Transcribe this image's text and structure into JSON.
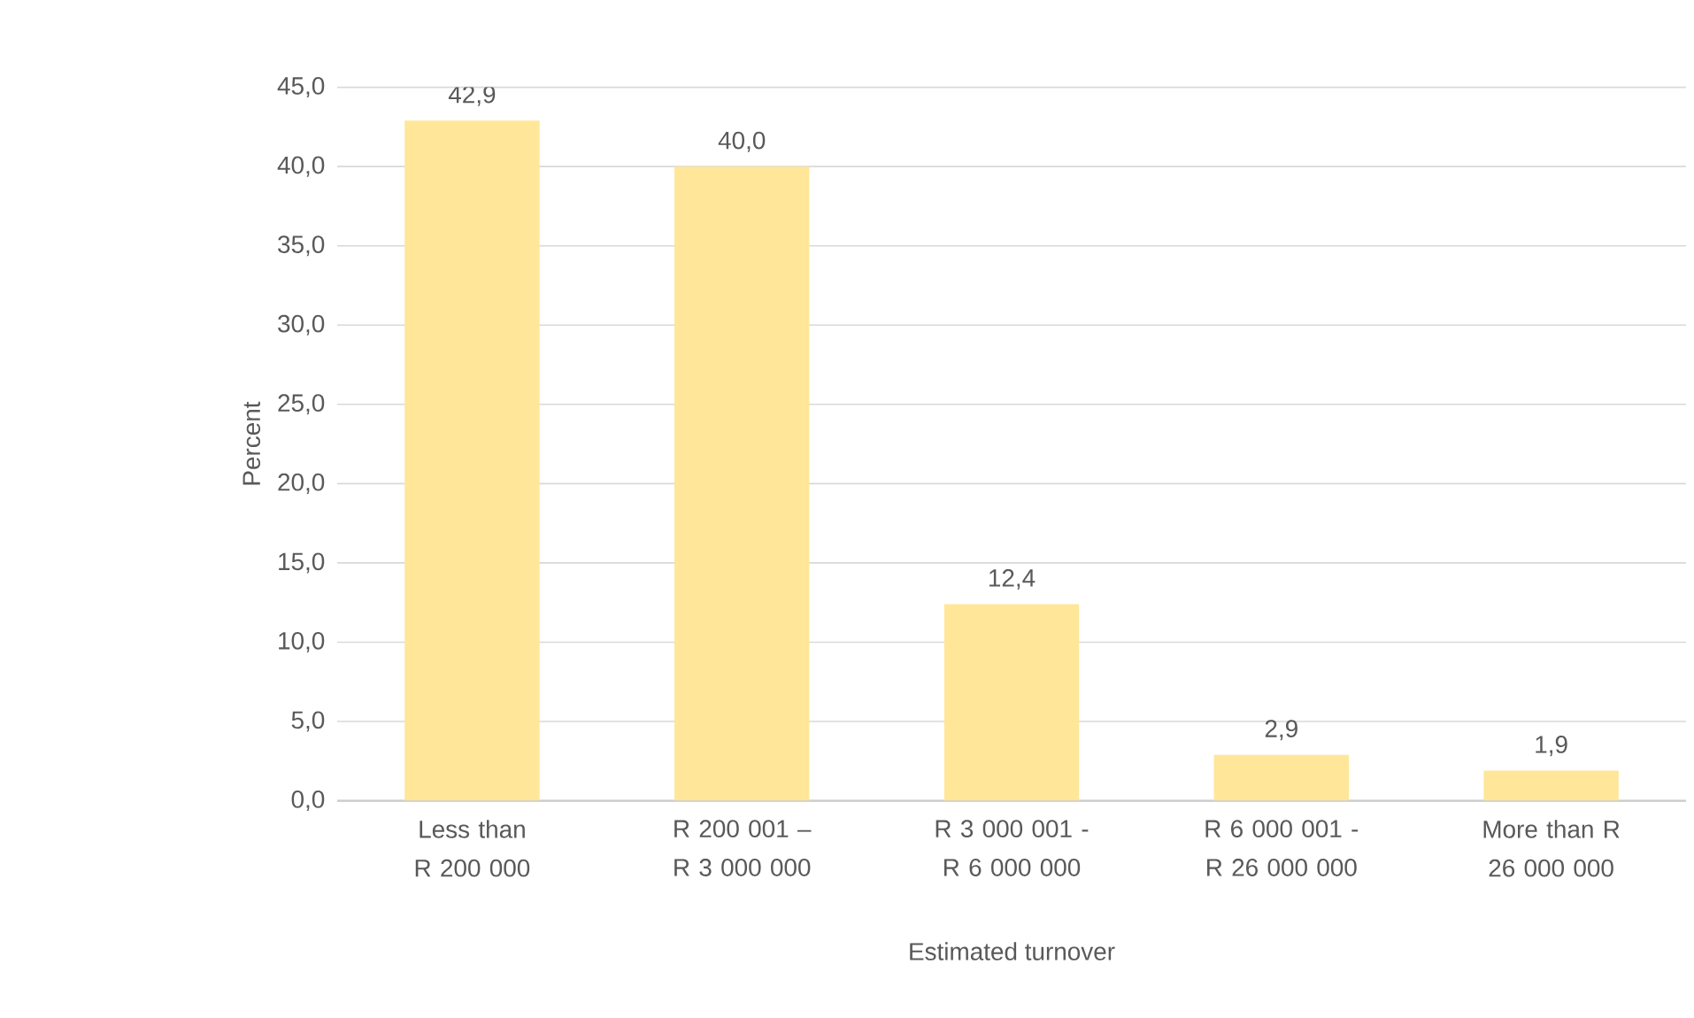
{
  "chart_data": {
    "type": "bar",
    "xlabel": "Estimated turnover",
    "ylabel": "Percent",
    "categories": [
      "Less than R 200 000",
      "R 200 001 –  R 3 000 000",
      "R 3 000 001 - R 6 000 000",
      "R 6 000 001 -  R 26 000 000",
      "More than  R 26 000 000"
    ],
    "values": [
      42.9,
      40.0,
      12.4,
      2.9,
      1.9
    ],
    "value_labels": [
      "42,9",
      "40,0",
      "12,4",
      "2,9",
      "1,9"
    ],
    "color": "#ffe699",
    "ylim": [
      0,
      45
    ],
    "yticks": [
      {
        "value": 0,
        "label": "0,0"
      },
      {
        "value": 5,
        "label": "5,0"
      },
      {
        "value": 10,
        "label": "10,0"
      },
      {
        "value": 15,
        "label": "15,0"
      },
      {
        "value": 20,
        "label": "20,0"
      },
      {
        "value": 25,
        "label": "25,0"
      },
      {
        "value": 30,
        "label": "30,0"
      },
      {
        "value": 35,
        "label": "35,0"
      },
      {
        "value": 40,
        "label": "40,0"
      },
      {
        "value": 45,
        "label": "45,0"
      }
    ],
    "grid": "y"
  }
}
